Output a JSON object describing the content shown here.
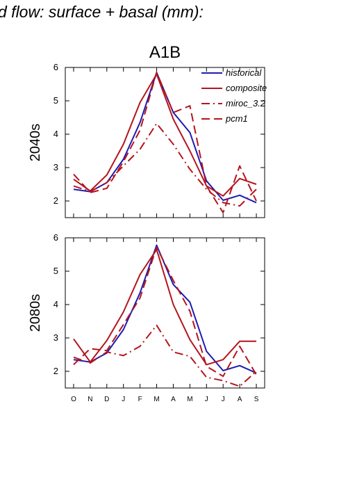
{
  "page_title": "d flow: surface + basal (mm):",
  "colors": {
    "historical": "#1c1cb4",
    "projection": "#b4141c",
    "axis": "#000000"
  },
  "chart_data": [
    {
      "type": "line",
      "title": "A1B",
      "ylabel": "2040s",
      "ylim": [
        1.5,
        6
      ],
      "yticks": [
        2,
        3,
        4,
        5,
        6
      ],
      "categories": [
        "O",
        "N",
        "D",
        "J",
        "F",
        "M",
        "A",
        "M",
        "J",
        "J",
        "A",
        "S"
      ],
      "show_xtick_labels": false,
      "legend_position": "top-right",
      "grid": false,
      "series": [
        {
          "name": "historical",
          "color": "#1c1cb4",
          "style": "solid",
          "values": [
            2.35,
            2.28,
            2.55,
            3.25,
            4.35,
            5.85,
            4.65,
            4.05,
            2.6,
            2.02,
            2.17,
            1.95
          ]
        },
        {
          "name": "composite",
          "color": "#b4141c",
          "style": "solid",
          "values": [
            2.65,
            2.3,
            2.78,
            3.7,
            4.95,
            5.8,
            4.45,
            3.5,
            2.45,
            2.15,
            2.67,
            2.5
          ]
        },
        {
          "name": "miroc_3.2",
          "color": "#b4141c",
          "style": "dashdot",
          "values": [
            2.45,
            2.28,
            2.55,
            3.05,
            3.55,
            4.32,
            3.7,
            2.95,
            2.35,
            1.95,
            1.85,
            2.35
          ]
        },
        {
          "name": "pcm1",
          "color": "#b4141c",
          "style": "dash",
          "values": [
            2.8,
            2.25,
            2.38,
            3.18,
            4.12,
            5.85,
            4.65,
            4.85,
            2.45,
            1.65,
            3.05,
            2.0
          ]
        }
      ]
    },
    {
      "type": "line",
      "title": "",
      "ylabel": "2080s",
      "ylim": [
        1.5,
        6
      ],
      "yticks": [
        2,
        3,
        4,
        5,
        6
      ],
      "categories": [
        "O",
        "N",
        "D",
        "J",
        "F",
        "M",
        "A",
        "M",
        "J",
        "J",
        "A",
        "S"
      ],
      "show_xtick_labels": true,
      "grid": false,
      "series": [
        {
          "name": "historical",
          "color": "#1c1cb4",
          "style": "solid",
          "values": [
            2.35,
            2.28,
            2.55,
            3.25,
            4.35,
            5.78,
            4.6,
            4.07,
            2.6,
            2.02,
            2.17,
            1.95
          ]
        },
        {
          "name": "composite",
          "color": "#b4141c",
          "style": "solid",
          "values": [
            2.97,
            2.28,
            2.92,
            3.78,
            4.9,
            5.65,
            4.0,
            2.95,
            2.2,
            2.35,
            2.9,
            2.9
          ]
        },
        {
          "name": "miroc_3.2",
          "color": "#b4141c",
          "style": "dashdot",
          "values": [
            2.42,
            2.25,
            2.58,
            2.47,
            2.75,
            3.38,
            2.58,
            2.45,
            1.82,
            1.72,
            1.55,
            2.0
          ]
        },
        {
          "name": "pcm1",
          "color": "#b4141c",
          "style": "dash",
          "values": [
            2.2,
            2.68,
            2.62,
            3.4,
            4.2,
            5.72,
            4.72,
            3.8,
            2.15,
            1.85,
            2.75,
            1.9
          ]
        }
      ]
    }
  ]
}
